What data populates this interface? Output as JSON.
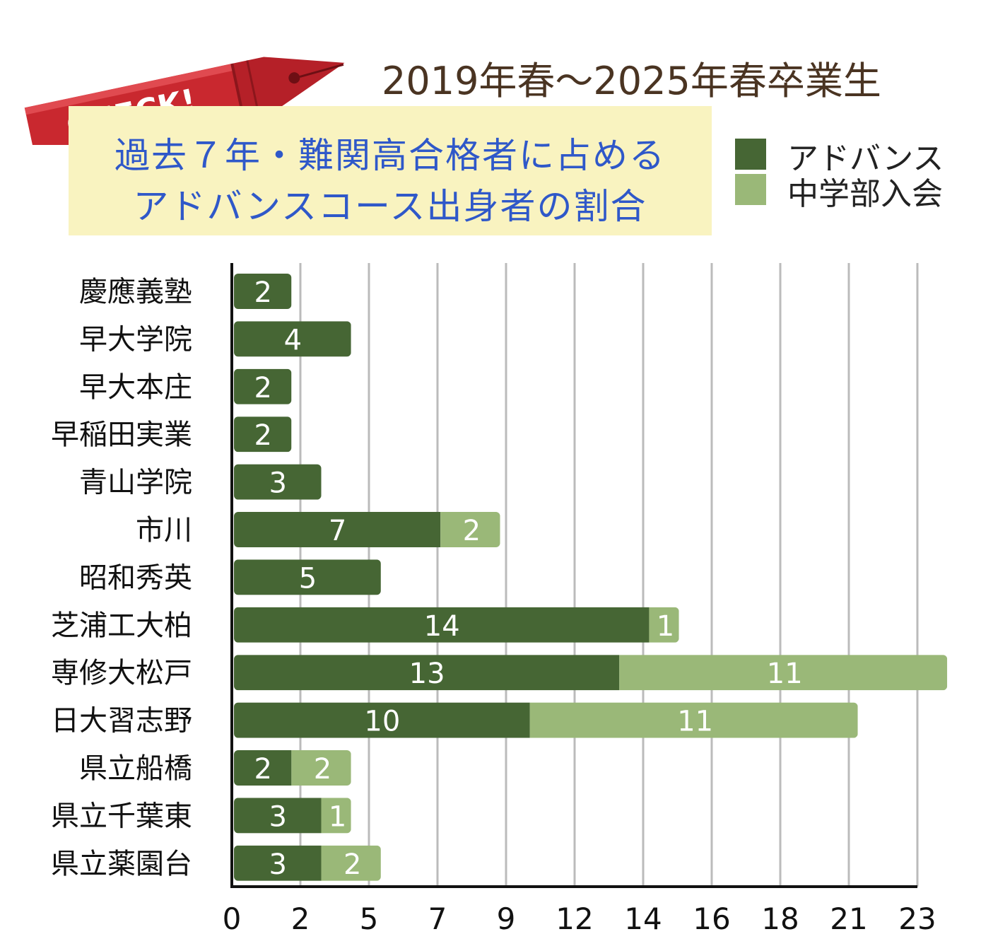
{
  "badge": {
    "text": "CHECK!"
  },
  "period_title": "2019年春〜2025年春卒業生",
  "subtitle": {
    "line1": "過去７年・難関高合格者に占める",
    "line2": "アドバンスコース出身者の割合"
  },
  "colors": {
    "advance": "#466634",
    "middle": "#9ab878",
    "badge_red": "#c9282f",
    "title_brown": "#4a3422",
    "subtitle_blue": "#2f58c9",
    "subtitle_bg": "#f9f3c0",
    "grid": "#bbbbbb"
  },
  "legend": [
    {
      "name": "アドバンス",
      "color": "#466634"
    },
    {
      "name": "中学部入会",
      "color": "#9ab878"
    }
  ],
  "chart_data": {
    "type": "bar",
    "orientation": "horizontal",
    "stacked": true,
    "categories": [
      "慶應義塾",
      "早大学院",
      "早大本庄",
      "早稲田実業",
      "青山学院",
      "市川",
      "昭和秀英",
      "芝浦工大柏",
      "専修大松戸",
      "日大習志野",
      "県立船橋",
      "県立千葉東",
      "県立薬園台"
    ],
    "series": [
      {
        "name": "アドバンス",
        "values": [
          2,
          4,
          2,
          2,
          3,
          7,
          5,
          14,
          13,
          10,
          2,
          3,
          3
        ]
      },
      {
        "name": "中学部入会",
        "values": [
          0,
          0,
          0,
          0,
          0,
          2,
          0,
          1,
          11,
          11,
          2,
          1,
          2
        ]
      }
    ],
    "xlim": [
      0,
      23
    ],
    "x_ticks": [
      "0",
      "2",
      "5",
      "7",
      "9",
      "12",
      "14",
      "16",
      "18",
      "21",
      "23"
    ],
    "x_tick_values": [
      0,
      2.3,
      4.6,
      6.9,
      9.2,
      11.5,
      13.8,
      16.1,
      18.4,
      20.7,
      23
    ],
    "grid": true,
    "legend_position": "top-right"
  }
}
